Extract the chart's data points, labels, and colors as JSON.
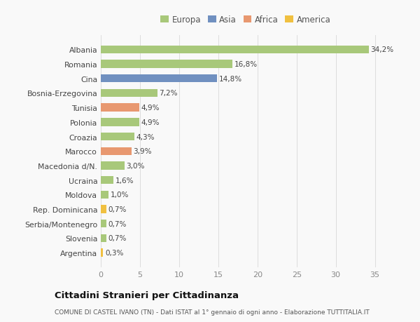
{
  "categories": [
    "Argentina",
    "Slovenia",
    "Serbia/Montenegro",
    "Rep. Dominicana",
    "Moldova",
    "Ucraina",
    "Macedonia d/N.",
    "Marocco",
    "Croazia",
    "Polonia",
    "Tunisia",
    "Bosnia-Erzegovina",
    "Cina",
    "Romania",
    "Albania"
  ],
  "values": [
    0.3,
    0.7,
    0.7,
    0.7,
    1.0,
    1.6,
    3.0,
    3.9,
    4.3,
    4.9,
    4.9,
    7.2,
    14.8,
    16.8,
    34.2
  ],
  "labels": [
    "0,3%",
    "0,7%",
    "0,7%",
    "0,7%",
    "1,0%",
    "1,6%",
    "3,0%",
    "3,9%",
    "4,3%",
    "4,9%",
    "4,9%",
    "7,2%",
    "14,8%",
    "16,8%",
    "34,2%"
  ],
  "colors": [
    "#f0c040",
    "#a8c87a",
    "#a8c87a",
    "#f0c040",
    "#a8c87a",
    "#a8c87a",
    "#a8c87a",
    "#e89870",
    "#a8c87a",
    "#a8c87a",
    "#e89870",
    "#a8c87a",
    "#7090c0",
    "#a8c87a",
    "#a8c87a"
  ],
  "legend": [
    {
      "label": "Europa",
      "color": "#a8c87a"
    },
    {
      "label": "Asia",
      "color": "#7090c0"
    },
    {
      "label": "Africa",
      "color": "#e89870"
    },
    {
      "label": "America",
      "color": "#f0c040"
    }
  ],
  "title": "Cittadini Stranieri per Cittadinanza",
  "subtitle": "COMUNE DI CASTEL IVANO (TN) - Dati ISTAT al 1° gennaio di ogni anno - Elaborazione TUTTITALIA.IT",
  "xlim": [
    0,
    37
  ],
  "xticks": [
    0,
    5,
    10,
    15,
    20,
    25,
    30,
    35
  ],
  "background_color": "#f9f9f9",
  "grid_color": "#dddddd",
  "bar_height": 0.55
}
